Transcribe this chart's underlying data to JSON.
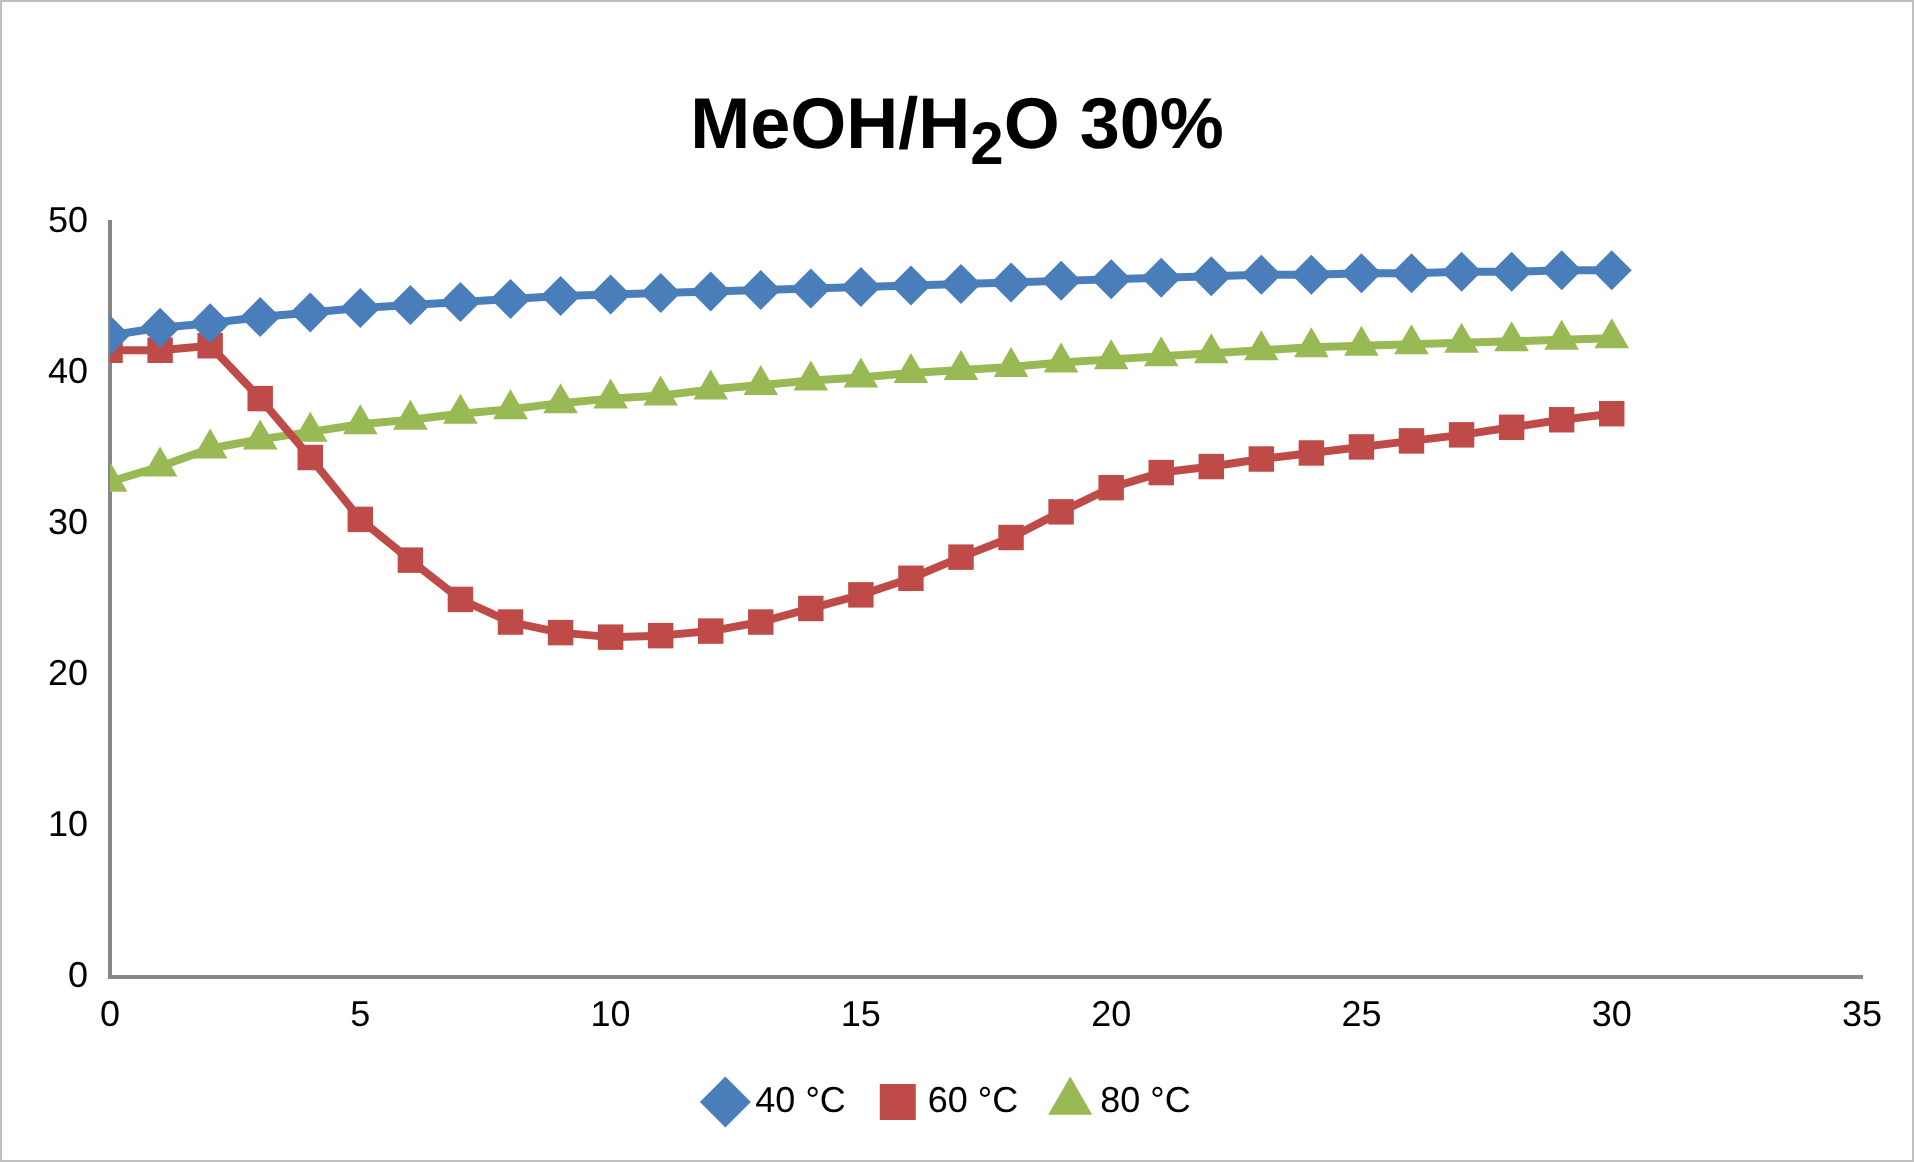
{
  "chart_data": {
    "type": "line",
    "title": "MeOH/H$_{2}$O 30%",
    "x": [
      0,
      1,
      2,
      3,
      4,
      5,
      6,
      7,
      8,
      9,
      10,
      11,
      12,
      13,
      14,
      15,
      16,
      17,
      18,
      19,
      20,
      21,
      22,
      23,
      24,
      25,
      26,
      27,
      28,
      29,
      30
    ],
    "series": [
      {
        "name": "40 °C",
        "color": "#4a7ebb",
        "marker": "diamond",
        "values": [
          42.5,
          43,
          43.3,
          43.7,
          44,
          44.3,
          44.5,
          44.7,
          44.9,
          45.1,
          45.2,
          45.3,
          45.4,
          45.5,
          45.6,
          45.7,
          45.8,
          45.9,
          46,
          46.1,
          46.2,
          46.3,
          46.4,
          46.5,
          46.5,
          46.6,
          46.6,
          46.7,
          46.7,
          46.8,
          46.8
        ]
      },
      {
        "name": "60 °C",
        "color": "#be4b48",
        "marker": "square",
        "values": [
          41.5,
          41.5,
          41.8,
          38.3,
          34.4,
          30.3,
          27.6,
          25,
          23.5,
          22.8,
          22.5,
          22.6,
          22.9,
          23.5,
          24.4,
          25.3,
          26.4,
          27.8,
          29.1,
          30.8,
          32.4,
          33.4,
          33.8,
          34.3,
          34.7,
          35.1,
          35.5,
          35.9,
          36.4,
          36.9,
          37.3
        ]
      },
      {
        "name": "80 °C",
        "color": "#98b954",
        "marker": "triangle",
        "values": [
          32.8,
          33.8,
          35,
          35.6,
          36.1,
          36.6,
          36.9,
          37.3,
          37.6,
          38,
          38.3,
          38.5,
          38.9,
          39.2,
          39.5,
          39.7,
          40,
          40.2,
          40.4,
          40.7,
          40.9,
          41.1,
          41.3,
          41.5,
          41.7,
          41.8,
          41.9,
          42,
          42.1,
          42.2,
          42.3
        ]
      }
    ],
    "xlim": [
      0,
      35
    ],
    "xticks": [
      0,
      5,
      10,
      15,
      20,
      25,
      30,
      35
    ],
    "ylim": [
      0,
      50
    ],
    "yticks": [
      0,
      10,
      20,
      30,
      40,
      50
    ],
    "grid": false,
    "legend": "bottom"
  }
}
